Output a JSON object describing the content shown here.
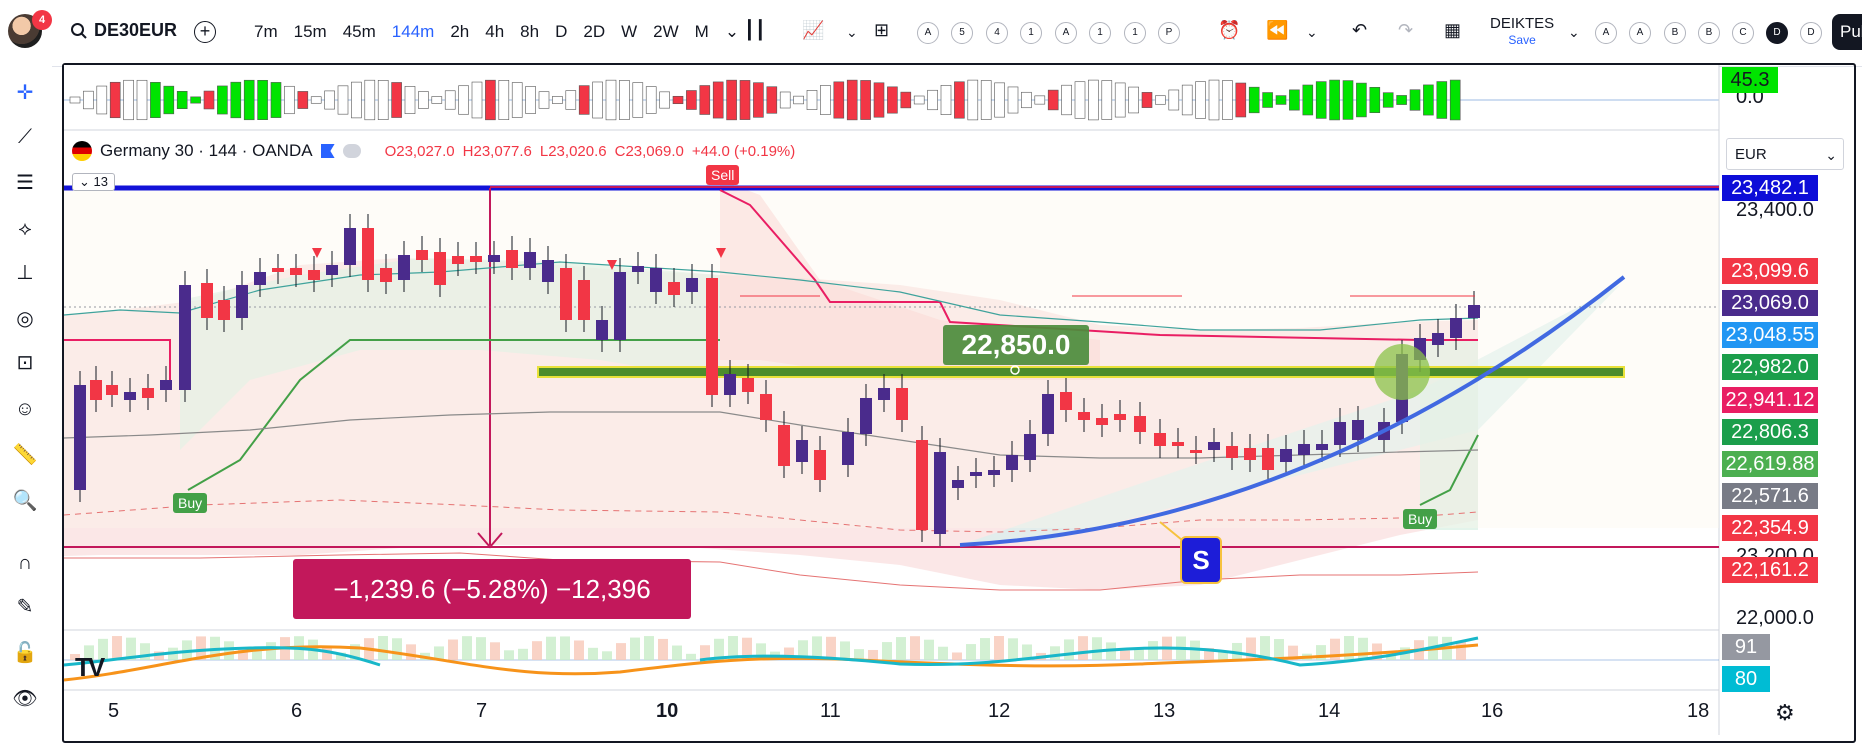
{
  "header": {
    "avatar_badge": "4",
    "symbol": "DE30EUR",
    "timeframes": [
      "7m",
      "15m",
      "45m",
      "144m",
      "2h",
      "4h",
      "8h",
      "D",
      "2D",
      "W",
      "2W",
      "M"
    ],
    "active_timeframe": "144m",
    "toolbar_circle_buttons": [
      "A",
      "5",
      "4",
      "1",
      "A",
      "1",
      "1",
      "P"
    ],
    "layout_name": "DEIKTES",
    "save_label": "Save",
    "right_circle_buttons": [
      "A",
      "A",
      "B",
      "B",
      "C",
      "D",
      "D"
    ],
    "publish_label": "Pub"
  },
  "legend": {
    "name": "Germany 30 · 144 · OANDA",
    "open": "O23,027.0",
    "high": "H23,077.6",
    "low": "L23,020.6",
    "close": "C23,069.0",
    "change": "+44.0 (+0.19%)",
    "collapsed_count": "13"
  },
  "price_axis": {
    "currency": "EUR",
    "boxes": [
      {
        "value": "45.3",
        "color": "#00e400",
        "text_color": "#131722"
      },
      {
        "value": "23,482.1",
        "color": "#0d0dd8",
        "text_color": "#ffffff"
      },
      {
        "value": "23,099.6",
        "color": "#f23645",
        "text_color": "#ffffff"
      },
      {
        "value": "23,069.0",
        "color": "#4a2b8c",
        "text_color": "#ffffff"
      },
      {
        "value": "23,048.55",
        "color": "#2196f3",
        "text_color": "#ffffff"
      },
      {
        "value": "22,982.0",
        "color": "#1b9e4b",
        "text_color": "#ffffff"
      },
      {
        "value": "22,941.12",
        "color": "#e91e63",
        "text_color": "#ffffff"
      },
      {
        "value": "22,806.3",
        "color": "#1b9e4b",
        "text_color": "#ffffff"
      },
      {
        "value": "22,619.88",
        "color": "#4caf50",
        "text_color": "#ffffff"
      },
      {
        "value": "22,571.6",
        "color": "#787b86",
        "text_color": "#ffffff"
      },
      {
        "value": "22,354.9",
        "color": "#f23645",
        "text_color": "#ffffff"
      },
      {
        "value": "22,161.2",
        "color": "#f23645",
        "text_color": "#ffffff"
      },
      {
        "value": "91",
        "color": "#9598a1",
        "text_color": "#ffffff"
      },
      {
        "value": "80",
        "color": "#00bcd4",
        "text_color": "#ffffff"
      }
    ],
    "ticks": [
      "0.0",
      "23,400.0",
      "23,200.0",
      "22,000.0"
    ]
  },
  "time_axis": {
    "labels": [
      "5",
      "6",
      "7",
      "10",
      "11",
      "12",
      "13",
      "14",
      "16",
      "18"
    ],
    "bold": [
      "10"
    ]
  },
  "annotations": {
    "measure": "−1,239.6 (−5.28%) −12,396",
    "level_text": "22,850.0",
    "buy_label_1": "Buy",
    "buy_label_2": "Buy",
    "sell_label": "Sell",
    "s_label": "S",
    "tv_logo": "TV"
  },
  "colors": {
    "up_candle": "#4a2b8c",
    "down_candle": "#f23645",
    "wick": "#131722",
    "hline_blue": "#1212d8",
    "trend_curve": "#4169e1",
    "green_level": "#4c8c2c"
  }
}
